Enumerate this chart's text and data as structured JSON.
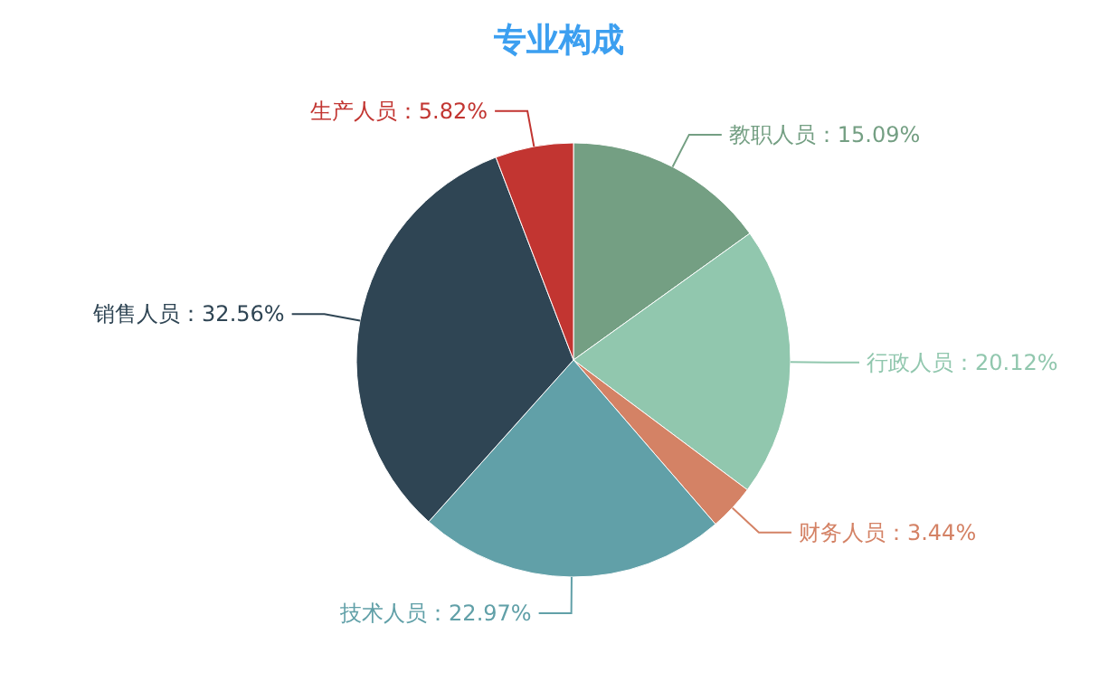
{
  "chart_data": {
    "type": "pie",
    "title": "专业构成",
    "categories": [
      "教职人员",
      "行政人员",
      "财务人员",
      "技术人员",
      "销售人员",
      "生产人员"
    ],
    "values": [
      15.09,
      20.12,
      3.44,
      22.97,
      32.56,
      5.82
    ],
    "value_labels": [
      "：15.09%",
      "：20.12%",
      "：3.44%",
      "：22.97%",
      "：32.56%",
      "：5.82%"
    ],
    "colors": [
      "#749f83",
      "#91c7ae",
      "#d48265",
      "#61a0a8",
      "#2f4554",
      "#c23531"
    ]
  }
}
